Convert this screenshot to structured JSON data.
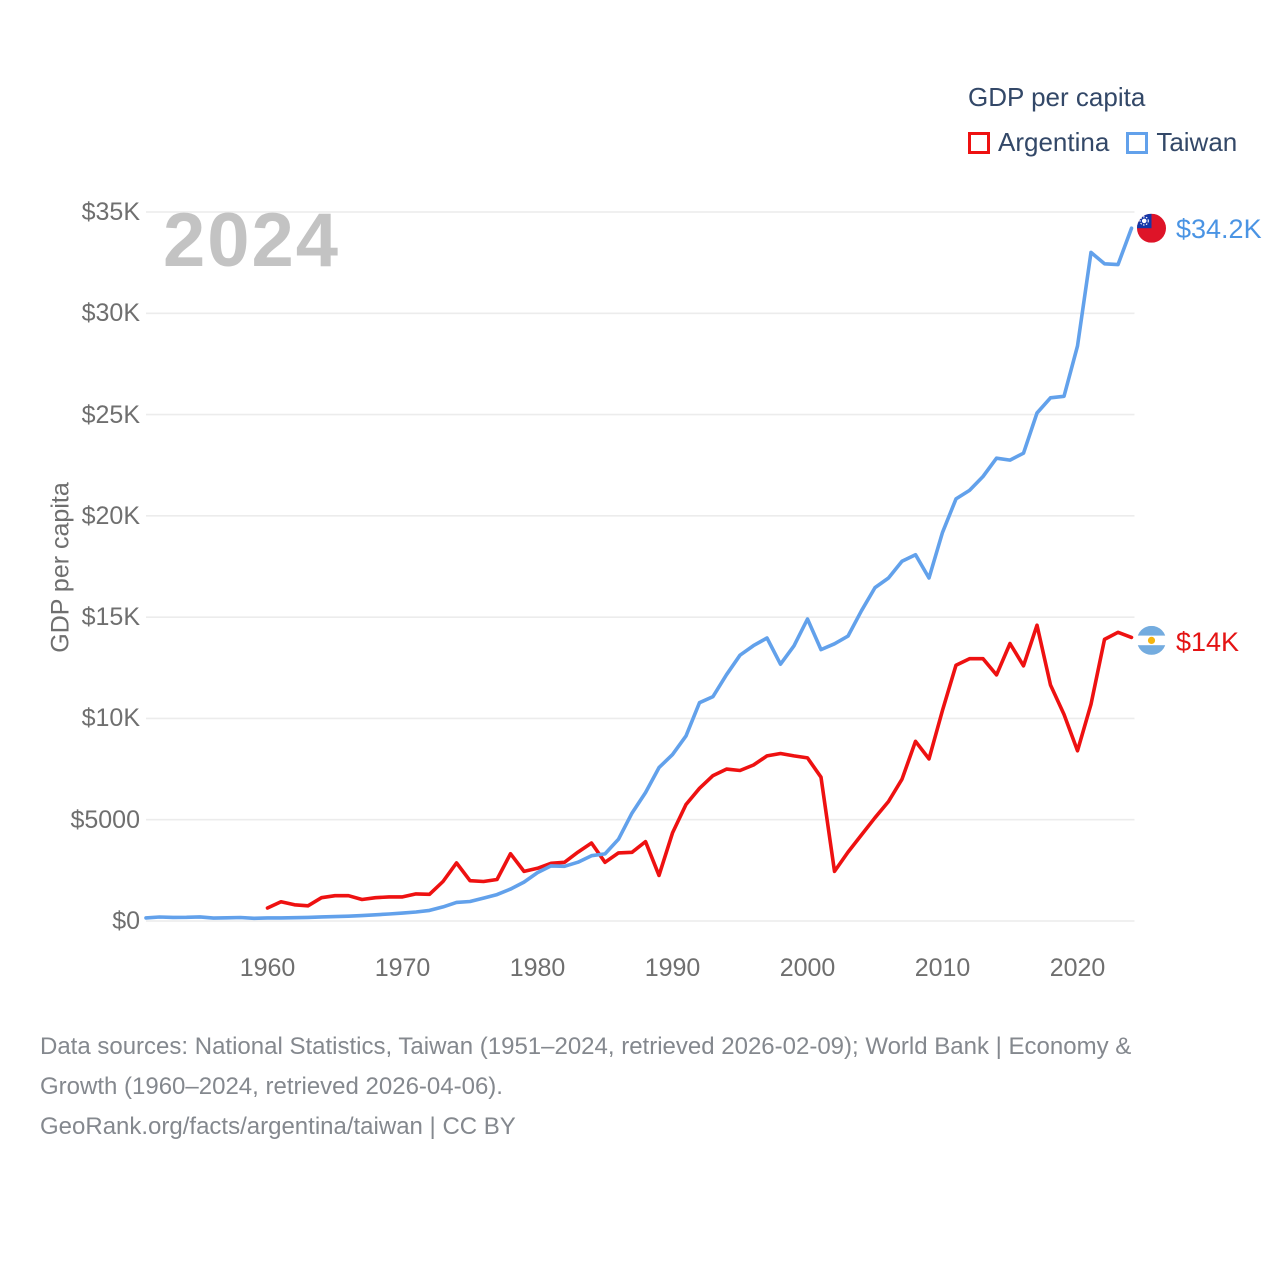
{
  "watermark": {
    "text": "2024"
  },
  "legend": {
    "title": "GDP per capita",
    "items": [
      {
        "label": "Argentina",
        "color": "#ee1111"
      },
      {
        "label": "Taiwan",
        "color": "#62a1eb"
      }
    ]
  },
  "y_axis": {
    "title": "GDP per capita",
    "tick_labels": [
      "$0",
      "$5000",
      "$10K",
      "$15K",
      "$20K",
      "$25K",
      "$30K",
      "$35K"
    ],
    "tick_values": [
      0,
      5000,
      10000,
      15000,
      20000,
      25000,
      30000,
      35000
    ]
  },
  "x_axis": {
    "tick_labels": [
      "1960",
      "1970",
      "1980",
      "1990",
      "2000",
      "2010",
      "2020"
    ],
    "tick_values": [
      1960,
      1970,
      1980,
      1990,
      2000,
      2010,
      2020
    ]
  },
  "footer": {
    "line1": "Data sources: National Statistics, Taiwan (1951–2024, retrieved 2026-02-09); World Bank | Economy &",
    "line2": "Growth (1960–2024, retrieved 2026-04-06).",
    "line3": "GeoRank.org/facts/argentina/taiwan | CC BY"
  },
  "icons": {
    "argentina_flag": {
      "name": "argentina-flag-icon",
      "stripe_blue": "#74acdf",
      "stripe_white": "#ffffff",
      "sun_yellow": "#f5b50f"
    },
    "taiwan_flag": {
      "name": "taiwan-flag-icon",
      "field_red": "#de1428",
      "canton_blue": "#1437a8",
      "sun_white": "#ffffff"
    }
  },
  "colors": {
    "grid": "#ececec",
    "axis_text": "#6f6f6f",
    "legend_text": "#334868",
    "watermark": "#c3c3c3",
    "footer_text": "#84888e"
  },
  "chart_data": {
    "type": "line",
    "title": "GDP per capita",
    "xlabel": "",
    "ylabel": "GDP per capita",
    "xlim": [
      1951,
      2024
    ],
    "ylim": [
      0,
      35000
    ],
    "grid": "horizontal-only",
    "legend_position": "top-right",
    "series": [
      {
        "name": "Argentina",
        "color": "#ee1111",
        "start_year": 1960,
        "end_year": 2024,
        "end_label": "$14K",
        "end_label_color": "#e41414",
        "values": [
          640,
          950,
          800,
          750,
          1150,
          1250,
          1250,
          1060,
          1150,
          1190,
          1190,
          1340,
          1320,
          1950,
          2870,
          1990,
          1950,
          2050,
          3320,
          2450,
          2600,
          2850,
          2900,
          3400,
          3850,
          2900,
          3360,
          3390,
          3920,
          2250,
          4350,
          5750,
          6550,
          7180,
          7500,
          7430,
          7700,
          8150,
          8270,
          8150,
          8050,
          7100,
          2450,
          3400,
          4250,
          5100,
          5900,
          7000,
          8870,
          8000,
          10400,
          12630,
          12950,
          12950,
          12150,
          13700,
          12600,
          14600,
          11650,
          10200,
          8400,
          10700,
          13900,
          14250,
          14000
        ]
      },
      {
        "name": "Taiwan",
        "color": "#62a1eb",
        "start_year": 1951,
        "end_year": 2024,
        "end_label": "$34.2K",
        "end_label_color": "#4a94e4",
        "values": [
          154,
          196,
          176,
          182,
          203,
          143,
          160,
          175,
          132,
          154,
          153,
          162,
          178,
          202,
          217,
          237,
          267,
          304,
          345,
          389,
          443,
          522,
          695,
          920,
          964,
          1132,
          1301,
          1577,
          1920,
          2389,
          2720,
          2699,
          2903,
          3224,
          3314,
          4036,
          5325,
          6338,
          7575,
          8216,
          9136,
          10778,
          11079,
          12160,
          13119,
          13597,
          13968,
          12679,
          13585,
          14908,
          13397,
          13686,
          14066,
          15317,
          16456,
          16934,
          17757,
          18081,
          16933,
          19181,
          20839,
          21256,
          21945,
          22844,
          22753,
          23091,
          25080,
          25826,
          25903,
          28383,
          33004,
          32444,
          32404,
          34200
        ]
      }
    ]
  }
}
